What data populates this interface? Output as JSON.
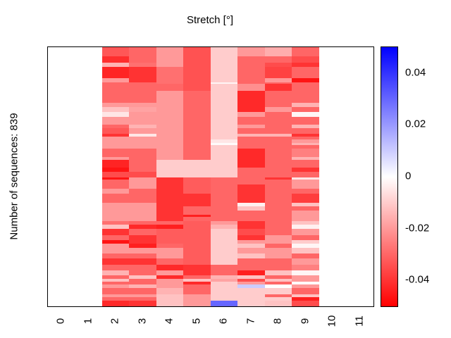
{
  "title": "Stretch [°]",
  "ylabel": "Number of sequences: 839",
  "chart_data": {
    "type": "heatmap",
    "title": "Stretch [°]",
    "ylabel": "Number of sequences: 839",
    "n_sequences": 839,
    "x_ticks": [
      "0",
      "1",
      "2",
      "3",
      "4",
      "5",
      "6",
      "7",
      "8",
      "9",
      "10",
      "11"
    ],
    "x_range": [
      -0.5,
      11.5
    ],
    "data_x_extent": [
      1.5,
      9.5
    ],
    "columns_x_centers": [
      2,
      3,
      4,
      5,
      6,
      7,
      8,
      9
    ],
    "value_range": [
      -0.05,
      0.05
    ],
    "colorbar": {
      "min": -0.05,
      "max": 0.05,
      "tick_values": [
        0.04,
        0.02,
        0,
        -0.02,
        -0.04
      ],
      "tick_labels": [
        "0.04",
        "0.02",
        "0",
        "-0.02",
        "-0.04"
      ],
      "top_color": "#0000ff",
      "mid_color": "#ffffff",
      "bottom_color": "#ff0000",
      "position": "right"
    },
    "grid": false,
    "legend": false,
    "bands": [
      {
        "y0": 0.0,
        "y1": 0.035,
        "values": [
          -0.033,
          -0.03,
          -0.02,
          -0.034,
          -0.01,
          -0.02,
          -0.016,
          -0.03
        ]
      },
      {
        "y0": 0.035,
        "y1": 0.06,
        "values": [
          -0.041,
          -0.03,
          -0.02,
          -0.034,
          -0.01,
          -0.03,
          -0.03,
          -0.035
        ]
      },
      {
        "y0": 0.06,
        "y1": 0.075,
        "values": [
          -0.015,
          -0.028,
          -0.02,
          -0.034,
          -0.01,
          -0.03,
          -0.035,
          -0.04
        ]
      },
      {
        "y0": 0.075,
        "y1": 0.12,
        "values": [
          -0.043,
          -0.04,
          -0.028,
          -0.034,
          -0.01,
          -0.03,
          -0.037,
          -0.03
        ]
      },
      {
        "y0": 0.12,
        "y1": 0.135,
        "values": [
          -0.02,
          -0.04,
          -0.028,
          -0.034,
          -0.01,
          -0.03,
          -0.02,
          -0.046
        ]
      },
      {
        "y0": 0.135,
        "y1": 0.14,
        "values": [
          -0.03,
          -0.03,
          -0.028,
          -0.034,
          -0.002,
          -0.03,
          -0.03,
          -0.03
        ]
      },
      {
        "y0": 0.14,
        "y1": 0.168,
        "values": [
          -0.03,
          -0.03,
          -0.03,
          -0.034,
          -0.01,
          -0.022,
          -0.04,
          -0.03
        ]
      },
      {
        "y0": 0.168,
        "y1": 0.215,
        "values": [
          -0.03,
          -0.03,
          -0.02,
          -0.03,
          -0.01,
          -0.042,
          -0.03,
          -0.03
        ]
      },
      {
        "y0": 0.215,
        "y1": 0.23,
        "values": [
          -0.02,
          -0.02,
          -0.02,
          -0.03,
          -0.01,
          -0.042,
          -0.03,
          -0.015
        ]
      },
      {
        "y0": 0.23,
        "y1": 0.25,
        "values": [
          -0.012,
          -0.018,
          -0.02,
          -0.03,
          -0.01,
          -0.042,
          -0.02,
          -0.03
        ]
      },
      {
        "y0": 0.25,
        "y1": 0.27,
        "values": [
          -0.005,
          -0.02,
          -0.02,
          -0.03,
          -0.01,
          -0.02,
          -0.03,
          -0.002
        ]
      },
      {
        "y0": 0.27,
        "y1": 0.3,
        "values": [
          -0.02,
          -0.02,
          -0.02,
          -0.03,
          -0.01,
          -0.03,
          -0.03,
          -0.03
        ]
      },
      {
        "y0": 0.3,
        "y1": 0.312,
        "values": [
          -0.03,
          -0.015,
          -0.02,
          -0.03,
          -0.01,
          -0.02,
          -0.03,
          -0.015
        ]
      },
      {
        "y0": 0.312,
        "y1": 0.335,
        "values": [
          -0.033,
          -0.02,
          -0.02,
          -0.03,
          -0.01,
          -0.03,
          -0.03,
          -0.03
        ]
      },
      {
        "y0": 0.335,
        "y1": 0.345,
        "values": [
          -0.04,
          -0.005,
          -0.02,
          -0.03,
          -0.01,
          -0.015,
          -0.015,
          -0.04
        ]
      },
      {
        "y0": 0.345,
        "y1": 0.357,
        "values": [
          -0.02,
          -0.02,
          -0.02,
          -0.03,
          -0.01,
          -0.03,
          -0.03,
          -0.03
        ]
      },
      {
        "y0": 0.357,
        "y1": 0.37,
        "values": [
          -0.02,
          -0.02,
          -0.02,
          -0.03,
          -0.005,
          -0.03,
          -0.03,
          -0.02
        ]
      },
      {
        "y0": 0.37,
        "y1": 0.378,
        "values": [
          -0.02,
          -0.02,
          -0.02,
          -0.03,
          -0.001,
          -0.03,
          -0.03,
          -0.015
        ]
      },
      {
        "y0": 0.378,
        "y1": 0.39,
        "values": [
          -0.02,
          -0.02,
          -0.02,
          -0.03,
          -0.01,
          -0.03,
          -0.03,
          -0.03
        ]
      },
      {
        "y0": 0.39,
        "y1": 0.425,
        "values": [
          -0.03,
          -0.03,
          -0.02,
          -0.03,
          -0.01,
          -0.042,
          -0.03,
          -0.025
        ]
      },
      {
        "y0": 0.425,
        "y1": 0.435,
        "values": [
          -0.02,
          -0.03,
          -0.02,
          -0.03,
          -0.01,
          -0.042,
          -0.03,
          -0.015
        ]
      },
      {
        "y0": 0.435,
        "y1": 0.465,
        "values": [
          -0.043,
          -0.03,
          -0.01,
          -0.01,
          -0.01,
          -0.042,
          -0.03,
          -0.03
        ]
      },
      {
        "y0": 0.465,
        "y1": 0.48,
        "values": [
          -0.046,
          -0.03,
          -0.01,
          -0.01,
          -0.01,
          -0.03,
          -0.03,
          -0.04
        ]
      },
      {
        "y0": 0.48,
        "y1": 0.503,
        "values": [
          -0.035,
          -0.035,
          -0.01,
          -0.01,
          -0.01,
          -0.03,
          -0.03,
          -0.03
        ]
      },
      {
        "y0": 0.503,
        "y1": 0.51,
        "values": [
          -0.046,
          -0.02,
          -0.04,
          -0.032,
          -0.03,
          -0.03,
          -0.04,
          -0.005
        ]
      },
      {
        "y0": 0.51,
        "y1": 0.53,
        "values": [
          -0.03,
          -0.02,
          -0.04,
          -0.032,
          -0.03,
          -0.03,
          -0.03,
          -0.02
        ]
      },
      {
        "y0": 0.53,
        "y1": 0.545,
        "values": [
          -0.03,
          -0.02,
          -0.04,
          -0.032,
          -0.03,
          -0.04,
          -0.03,
          -0.02
        ]
      },
      {
        "y0": 0.545,
        "y1": 0.565,
        "values": [
          -0.02,
          -0.03,
          -0.04,
          -0.032,
          -0.03,
          -0.04,
          -0.03,
          -0.03
        ]
      },
      {
        "y0": 0.565,
        "y1": 0.6,
        "values": [
          -0.03,
          -0.03,
          -0.04,
          -0.04,
          -0.03,
          -0.04,
          -0.03,
          -0.038
        ]
      },
      {
        "y0": 0.6,
        "y1": 0.615,
        "values": [
          -0.02,
          -0.02,
          -0.04,
          -0.04,
          -0.03,
          -0.003,
          -0.03,
          -0.012
        ]
      },
      {
        "y0": 0.615,
        "y1": 0.63,
        "values": [
          -0.02,
          -0.02,
          -0.04,
          -0.03,
          -0.03,
          -0.012,
          -0.03,
          -0.03
        ]
      },
      {
        "y0": 0.63,
        "y1": 0.647,
        "values": [
          -0.02,
          -0.02,
          -0.04,
          -0.03,
          -0.03,
          -0.03,
          -0.03,
          -0.02
        ]
      },
      {
        "y0": 0.647,
        "y1": 0.656,
        "values": [
          -0.02,
          -0.02,
          -0.04,
          -0.044,
          -0.03,
          -0.03,
          -0.03,
          -0.02
        ]
      },
      {
        "y0": 0.656,
        "y1": 0.671,
        "values": [
          -0.02,
          -0.02,
          -0.04,
          -0.03,
          -0.03,
          -0.03,
          -0.03,
          -0.02
        ]
      },
      {
        "y0": 0.671,
        "y1": 0.685,
        "values": [
          -0.028,
          -0.03,
          -0.03,
          -0.032,
          -0.02,
          -0.04,
          -0.03,
          -0.012
        ]
      },
      {
        "y0": 0.685,
        "y1": 0.7,
        "values": [
          -0.012,
          -0.042,
          -0.044,
          -0.032,
          -0.015,
          -0.04,
          -0.03,
          -0.003
        ]
      },
      {
        "y0": 0.7,
        "y1": 0.725,
        "values": [
          -0.04,
          -0.03,
          -0.032,
          -0.032,
          -0.01,
          -0.035,
          -0.03,
          -0.02
        ]
      },
      {
        "y0": 0.725,
        "y1": 0.745,
        "values": [
          -0.03,
          -0.04,
          -0.032,
          -0.032,
          -0.01,
          -0.04,
          -0.02,
          -0.03
        ]
      },
      {
        "y0": 0.745,
        "y1": 0.757,
        "values": [
          -0.046,
          -0.04,
          -0.032,
          -0.032,
          -0.01,
          -0.02,
          -0.02,
          -0.01
        ]
      },
      {
        "y0": 0.757,
        "y1": 0.775,
        "values": [
          -0.02,
          -0.044,
          -0.03,
          -0.032,
          -0.01,
          -0.012,
          -0.03,
          -0.002
        ]
      },
      {
        "y0": 0.775,
        "y1": 0.795,
        "values": [
          -0.02,
          -0.02,
          -0.02,
          -0.032,
          -0.01,
          -0.02,
          -0.02,
          -0.012
        ]
      },
      {
        "y0": 0.795,
        "y1": 0.815,
        "values": [
          -0.03,
          -0.03,
          -0.02,
          -0.032,
          -0.01,
          -0.012,
          -0.02,
          -0.03
        ]
      },
      {
        "y0": 0.815,
        "y1": 0.839,
        "values": [
          -0.04,
          -0.04,
          -0.03,
          -0.032,
          -0.01,
          -0.03,
          -0.03,
          -0.02
        ]
      },
      {
        "y0": 0.839,
        "y1": 0.862,
        "values": [
          -0.03,
          -0.03,
          -0.042,
          -0.04,
          -0.03,
          -0.03,
          -0.03,
          -0.025
        ]
      },
      {
        "y0": 0.862,
        "y1": 0.88,
        "values": [
          -0.015,
          -0.03,
          -0.02,
          -0.04,
          -0.03,
          -0.044,
          -0.012,
          -0.002
        ]
      },
      {
        "y0": 0.88,
        "y1": 0.894,
        "values": [
          -0.03,
          -0.012,
          -0.042,
          -0.03,
          -0.015,
          -0.012,
          -0.03,
          -0.02
        ]
      },
      {
        "y0": 0.894,
        "y1": 0.905,
        "values": [
          -0.012,
          -0.03,
          -0.02,
          -0.012,
          -0.018,
          -0.035,
          -0.012,
          -0.02
        ]
      },
      {
        "y0": 0.905,
        "y1": 0.916,
        "values": [
          -0.03,
          -0.03,
          -0.02,
          -0.042,
          -0.01,
          -0.02,
          -0.03,
          -0.001
        ]
      },
      {
        "y0": 0.916,
        "y1": 0.93,
        "values": [
          -0.02,
          -0.015,
          -0.02,
          -0.03,
          -0.01,
          0.01,
          0.0,
          -0.02
        ]
      },
      {
        "y0": 0.93,
        "y1": 0.955,
        "values": [
          -0.03,
          -0.03,
          -0.015,
          -0.03,
          -0.01,
          -0.01,
          -0.01,
          -0.03
        ]
      },
      {
        "y0": 0.955,
        "y1": 0.965,
        "values": [
          -0.02,
          -0.02,
          -0.012,
          -0.02,
          -0.01,
          -0.01,
          -0.03,
          -0.012
        ]
      },
      {
        "y0": 0.965,
        "y1": 0.978,
        "values": [
          -0.03,
          -0.03,
          -0.012,
          -0.02,
          -0.01,
          -0.01,
          -0.01,
          -0.044
        ]
      },
      {
        "y0": 0.978,
        "y1": 1.0,
        "values": [
          -0.042,
          -0.04,
          -0.012,
          -0.02,
          0.03,
          -0.01,
          -0.012,
          -0.035
        ]
      }
    ]
  }
}
